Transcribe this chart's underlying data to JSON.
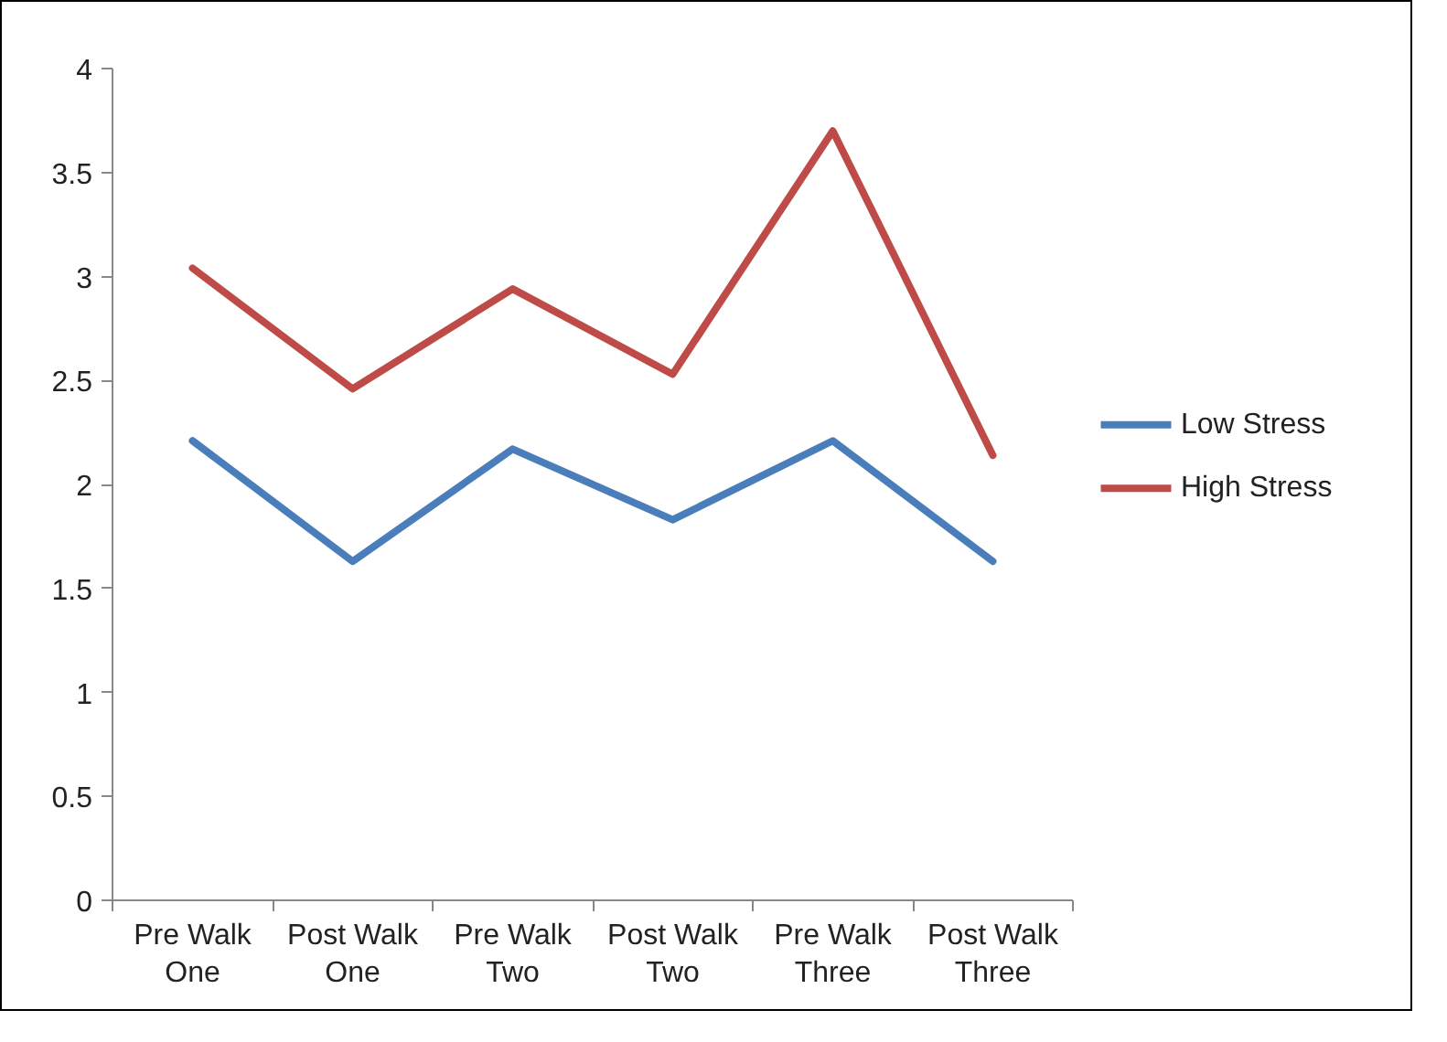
{
  "chart_data": {
    "type": "line",
    "categories": [
      "Pre Walk One",
      "Post Walk One",
      "Pre Walk Two",
      "Post Walk Two",
      "Pre Walk Three",
      "Post Walk Three"
    ],
    "series": [
      {
        "name": "Low Stress",
        "color": "#4a7ebb",
        "values": [
          2.21,
          1.63,
          2.17,
          1.83,
          2.21,
          1.63
        ]
      },
      {
        "name": "High Stress",
        "color": "#be4b48",
        "values": [
          3.04,
          2.46,
          2.94,
          2.53,
          3.7,
          2.14
        ]
      }
    ],
    "ylim": [
      0,
      4
    ],
    "yticks": [
      0,
      0.5,
      1,
      1.5,
      2,
      2.5,
      3,
      3.5,
      4
    ],
    "grid": false,
    "legend": "right",
    "marker": "none",
    "line_style": "solid"
  }
}
